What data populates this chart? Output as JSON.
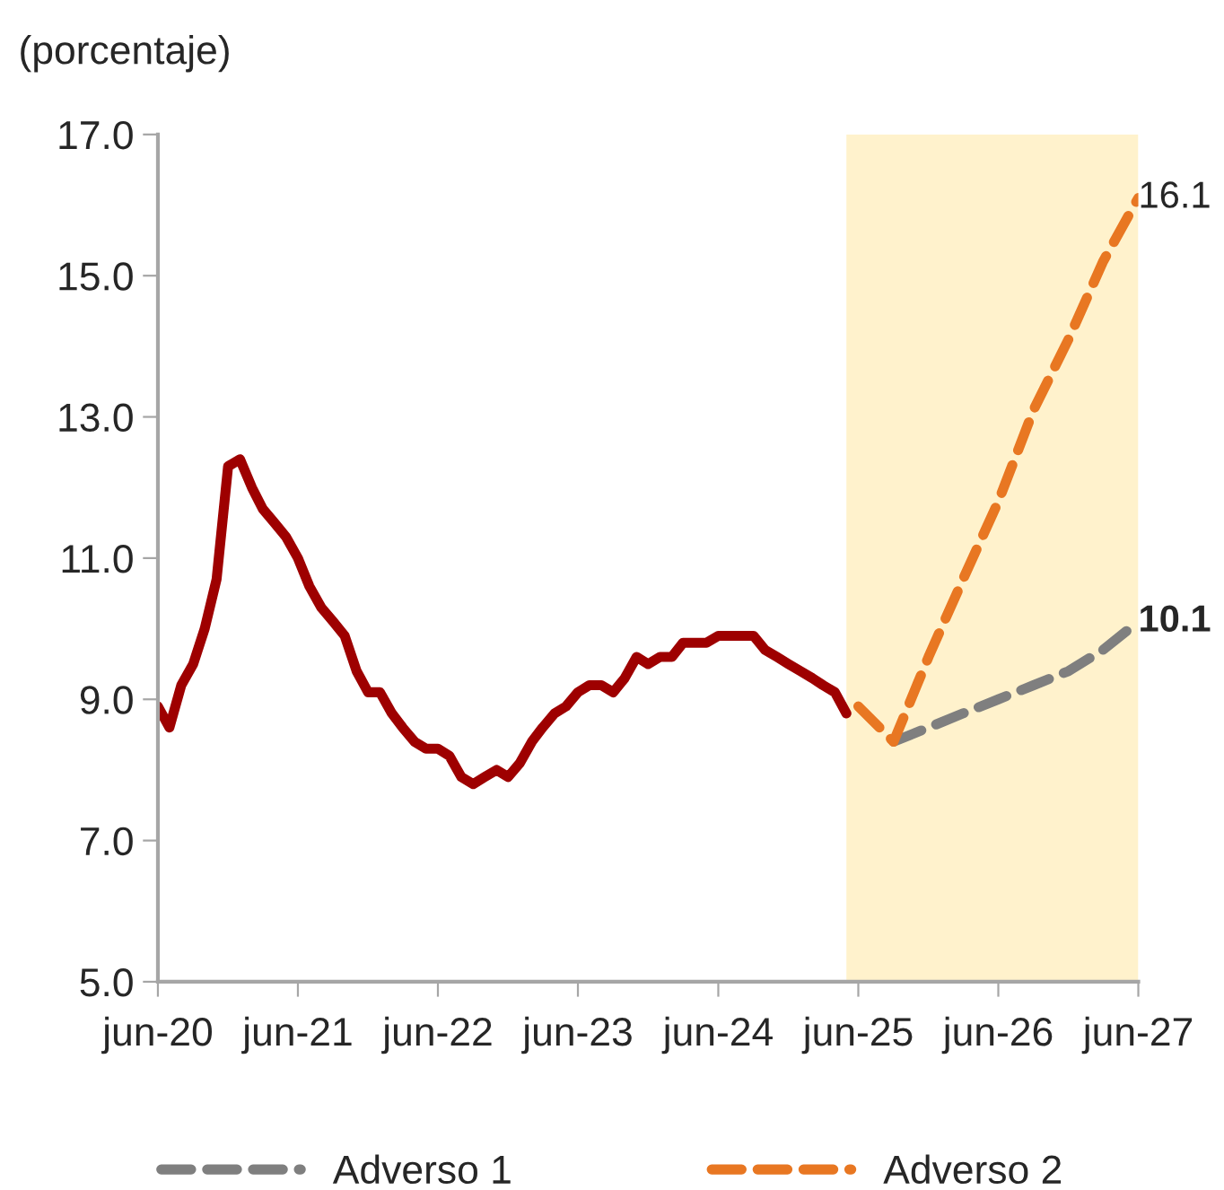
{
  "chart_data": {
    "type": "line",
    "ylabel": "(porcentaje)",
    "xlim": [
      "2020-06",
      "2027-06"
    ],
    "xticks": [
      {
        "value": "2020-06",
        "label": "jun-20"
      },
      {
        "value": "2021-06",
        "label": "jun-21"
      },
      {
        "value": "2022-06",
        "label": "jun-22"
      },
      {
        "value": "2023-06",
        "label": "jun-23"
      },
      {
        "value": "2024-06",
        "label": "jun-24"
      },
      {
        "value": "2025-06",
        "label": "jun-25"
      },
      {
        "value": "2026-06",
        "label": "jun-26"
      },
      {
        "value": "2027-06",
        "label": "jun-27"
      }
    ],
    "ylim": [
      5,
      17
    ],
    "yticks": [
      {
        "value": 5,
        "label": "5.0"
      },
      {
        "value": 7,
        "label": "7.0"
      },
      {
        "value": 9,
        "label": "9.0"
      },
      {
        "value": 11,
        "label": "11.0"
      },
      {
        "value": 13,
        "label": "13.0"
      },
      {
        "value": 15,
        "label": "15.0"
      },
      {
        "value": 17,
        "label": "17.0"
      }
    ],
    "grid": false,
    "legend": "bottom",
    "marker": "none",
    "bands": [
      {
        "axis": "x",
        "from": "2025-05",
        "to": "2027-06",
        "color": "#fff2cc"
      }
    ],
    "series": [
      {
        "color": "#9e0000",
        "line_style": "solid",
        "x": [
          "2020-06",
          "2020-07",
          "2020-08",
          "2020-09",
          "2020-10",
          "2020-11",
          "2020-12",
          "2021-01",
          "2021-02",
          "2021-03",
          "2021-04",
          "2021-05",
          "2021-06",
          "2021-07",
          "2021-08",
          "2021-09",
          "2021-10",
          "2021-11",
          "2021-12",
          "2022-01",
          "2022-02",
          "2022-03",
          "2022-04",
          "2022-05",
          "2022-06",
          "2022-07",
          "2022-08",
          "2022-09",
          "2022-10",
          "2022-11",
          "2022-12",
          "2023-01",
          "2023-02",
          "2023-03",
          "2023-04",
          "2023-05",
          "2023-06",
          "2023-07",
          "2023-08",
          "2023-09",
          "2023-10",
          "2023-11",
          "2023-12",
          "2024-01",
          "2024-02",
          "2024-03",
          "2024-04",
          "2024-05",
          "2024-06",
          "2024-07",
          "2024-08",
          "2024-09",
          "2024-10",
          "2024-11",
          "2024-12",
          "2025-01",
          "2025-02",
          "2025-03",
          "2025-04",
          "2025-05"
        ],
        "values": [
          8.9,
          8.6,
          9.2,
          9.5,
          10.0,
          10.7,
          12.3,
          12.4,
          12.0,
          11.7,
          11.5,
          11.3,
          11.0,
          10.6,
          10.3,
          10.1,
          9.9,
          9.4,
          9.1,
          9.1,
          8.8,
          8.6,
          8.4,
          8.3,
          8.3,
          8.2,
          7.9,
          7.8,
          7.9,
          8.0,
          7.9,
          8.1,
          8.4,
          8.6,
          8.8,
          8.9,
          9.1,
          9.2,
          9.2,
          9.1,
          9.3,
          9.6,
          9.5,
          9.6,
          9.6,
          9.8,
          9.8,
          9.8,
          9.9,
          9.9,
          9.9,
          9.9,
          9.7,
          9.6,
          9.5,
          9.4,
          9.3,
          9.2,
          9.1,
          8.8
        ]
      },
      {
        "name": "Adverso 1",
        "color": "#7f7f7f",
        "line_style": "dashed",
        "x": [
          "2025-09",
          "2025-12",
          "2026-03",
          "2026-06",
          "2026-09",
          "2026-12",
          "2027-03",
          "2027-06"
        ],
        "values": [
          8.4,
          8.6,
          8.8,
          9.0,
          9.2,
          9.4,
          9.7,
          10.1
        ],
        "value_labels": [
          null,
          null,
          null,
          null,
          null,
          null,
          null,
          "10.1"
        ]
      },
      {
        "name": "Adverso 2",
        "color": "#e87722",
        "line_style": "dashed",
        "x": [
          "2025-06",
          "2025-09",
          "2025-12",
          "2026-03",
          "2026-06",
          "2026-09",
          "2026-12",
          "2027-03",
          "2027-06"
        ],
        "values": [
          8.9,
          8.4,
          9.6,
          10.7,
          11.8,
          13.1,
          14.1,
          15.2,
          16.1
        ],
        "value_labels": [
          null,
          null,
          null,
          null,
          null,
          null,
          null,
          null,
          "16.1"
        ]
      }
    ]
  }
}
